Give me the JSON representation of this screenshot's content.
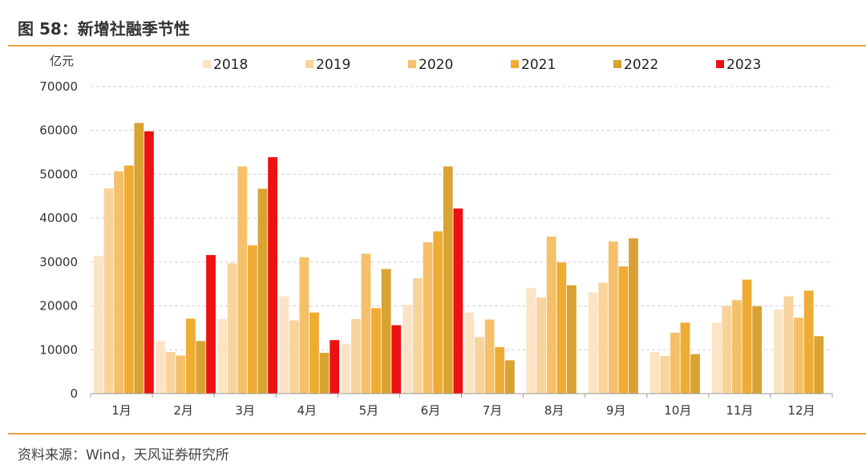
{
  "header": {
    "title": "图 58：新增社融季节性"
  },
  "footer": {
    "source": "资料来源：Wind，天风证券研究所"
  },
  "chart_data": {
    "type": "bar",
    "ylabel": "亿元",
    "ylim": [
      0,
      70000
    ],
    "yticks": [
      0,
      10000,
      20000,
      30000,
      40000,
      50000,
      60000,
      70000
    ],
    "grid": true,
    "legend_position": "top",
    "categories": [
      "1月",
      "2月",
      "3月",
      "4月",
      "5月",
      "6月",
      "7月",
      "8月",
      "9月",
      "10月",
      "11月",
      "12月"
    ],
    "series": [
      {
        "name": "2018",
        "color": "#fbe3c6",
        "values": [
          31400,
          12000,
          17000,
          22200,
          11300,
          20300,
          18500,
          24100,
          23100,
          9500,
          16200,
          19200
        ]
      },
      {
        "name": "2019",
        "color": "#f8d49c",
        "values": [
          46800,
          9500,
          29700,
          16700,
          17000,
          26300,
          12900,
          21900,
          25300,
          8600,
          20000,
          22200
        ]
      },
      {
        "name": "2020",
        "color": "#f5c069",
        "values": [
          50700,
          8700,
          51800,
          31100,
          31900,
          34500,
          16900,
          35800,
          34700,
          13900,
          21300,
          17300
        ]
      },
      {
        "name": "2021",
        "color": "#efac34",
        "values": [
          52000,
          17100,
          33800,
          18500,
          19500,
          37000,
          10600,
          29900,
          29000,
          16200,
          26000,
          23500
        ]
      },
      {
        "name": "2022",
        "color": "#d9a233",
        "values": [
          61700,
          12000,
          46700,
          9300,
          28400,
          51800,
          7600,
          24700,
          35400,
          9000,
          19900,
          13100
        ]
      },
      {
        "name": "2023",
        "color": "#ee1111",
        "values": [
          59800,
          31600,
          53900,
          12200,
          15600,
          42200,
          null,
          null,
          null,
          null,
          null,
          null
        ]
      }
    ]
  }
}
